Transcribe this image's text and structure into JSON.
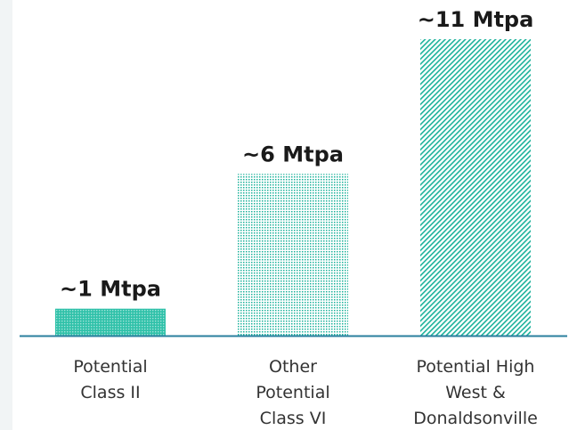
{
  "chart_data": {
    "type": "bar",
    "title": "",
    "xlabel": "",
    "ylabel": "",
    "ylim": [
      0,
      11
    ],
    "grid": false,
    "categories": [
      [
        "Potential",
        "Class II"
      ],
      [
        "Other",
        "Potential",
        "Class VI"
      ],
      [
        "Potential High",
        "West &",
        "Donaldsonville"
      ]
    ],
    "values": [
      1,
      6,
      11
    ],
    "value_labels": [
      "~1 Mtpa",
      "~6 Mtpa",
      "~11 Mtpa"
    ],
    "unit": "Mtpa",
    "colors": {
      "bar": "#1cb29b",
      "axis": "#2a7f9e",
      "text": "#1a1a1a",
      "category_text": "#333333",
      "background": "#ffffff",
      "left_strip": "#f1f4f5"
    },
    "patterns": [
      "dense-dots",
      "sparse-dots",
      "diagonal-hatch"
    ]
  }
}
